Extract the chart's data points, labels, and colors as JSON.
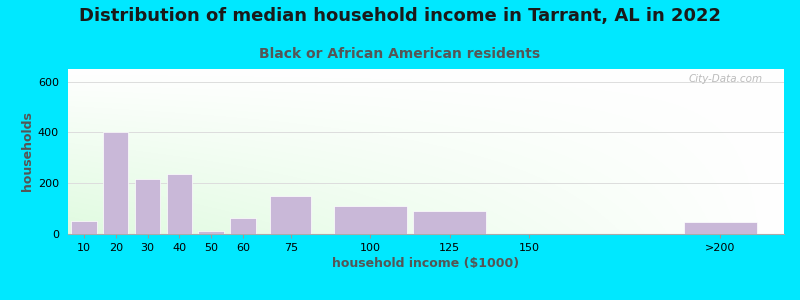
{
  "title": "Distribution of median household income in Tarrant, AL in 2022",
  "subtitle": "Black or African American residents",
  "xlabel": "household income ($1000)",
  "ylabel": "households",
  "bar_labels": [
    "10",
    "20",
    "30",
    "40",
    "50",
    "60",
    "75",
    "100",
    "125",
    "150",
    ">200"
  ],
  "bar_positions": [
    10,
    20,
    30,
    40,
    50,
    60,
    75,
    100,
    125,
    150,
    210
  ],
  "bar_widths": [
    8,
    8,
    8,
    8,
    8,
    8,
    13,
    23,
    23,
    23,
    23
  ],
  "bar_values": [
    50,
    400,
    215,
    235,
    10,
    65,
    150,
    110,
    90,
    0,
    47
  ],
  "bar_color": "#c9b8d8",
  "background_outer": "#00e8ff",
  "ylim": [
    0,
    650
  ],
  "yticks": [
    0,
    200,
    400,
    600
  ],
  "xlim": [
    5,
    230
  ],
  "xtick_positions": [
    10,
    20,
    30,
    40,
    50,
    60,
    75,
    100,
    125,
    150,
    210
  ],
  "xtick_labels": [
    "10",
    "20",
    "30",
    "40",
    "50",
    "60",
    "75",
    "100",
    "125",
    "150",
    ">200"
  ],
  "title_fontsize": 13,
  "subtitle_fontsize": 10,
  "axis_label_fontsize": 9,
  "tick_fontsize": 8,
  "watermark": "City-Data.com"
}
